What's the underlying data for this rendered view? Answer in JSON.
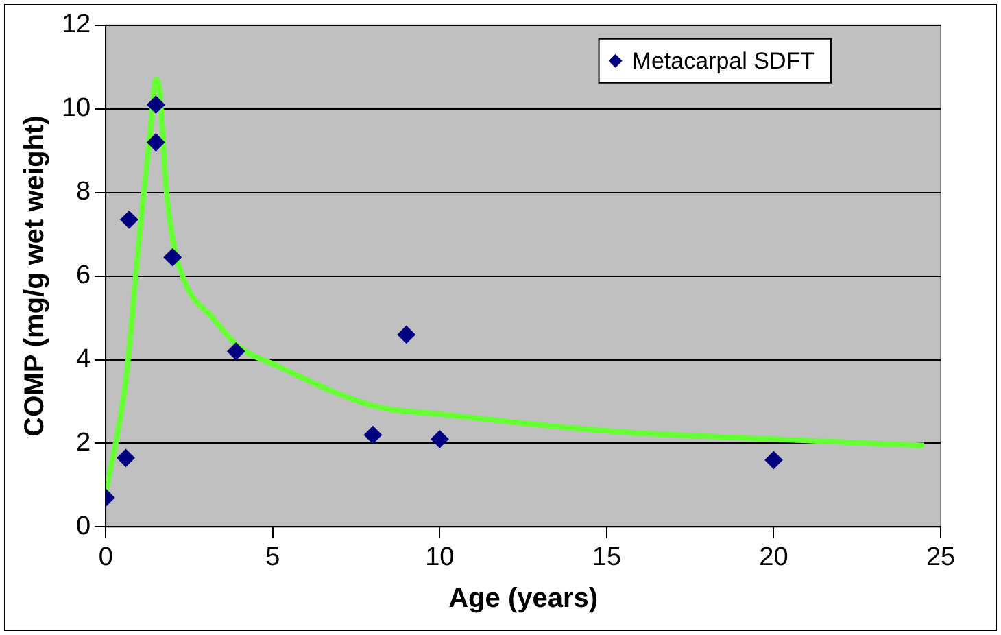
{
  "chart_data": {
    "type": "scatter",
    "xlabel": "Age (years)",
    "ylabel": "COMP (mg/g wet weight)",
    "xlim": [
      0,
      25
    ],
    "xticks": [
      0,
      5,
      10,
      15,
      20,
      25
    ],
    "ylim": [
      0,
      12
    ],
    "yticks": [
      0,
      2,
      4,
      6,
      8,
      10,
      12
    ],
    "grid": "y",
    "legend": "top right",
    "marker": "diamond",
    "series": [
      {
        "name": "Metacarpal SDFT",
        "color": "#000080",
        "x": [
          0,
          0.6,
          0.7,
          1.5,
          1.5,
          2,
          3.9,
          8,
          9,
          10,
          20
        ],
        "values": [
          0.7,
          1.65,
          7.35,
          10.1,
          9.2,
          6.45,
          4.2,
          2.2,
          4.6,
          2.1,
          1.6
        ]
      },
      {
        "type": "line",
        "color": "#66ff33",
        "marker": "none",
        "x": [
          0,
          0.6,
          1,
          1.35,
          1.5,
          1.6,
          1.8,
          2,
          2.4,
          3.2,
          4,
          5,
          8,
          10,
          15,
          20,
          24.5
        ],
        "values": [
          0.8,
          3.5,
          6.9,
          9.6,
          10.7,
          10.5,
          8.2,
          6.9,
          5.8,
          5,
          4.3,
          3.9,
          2.9,
          2.7,
          2.3,
          2.1,
          1.95
        ]
      }
    ]
  }
}
